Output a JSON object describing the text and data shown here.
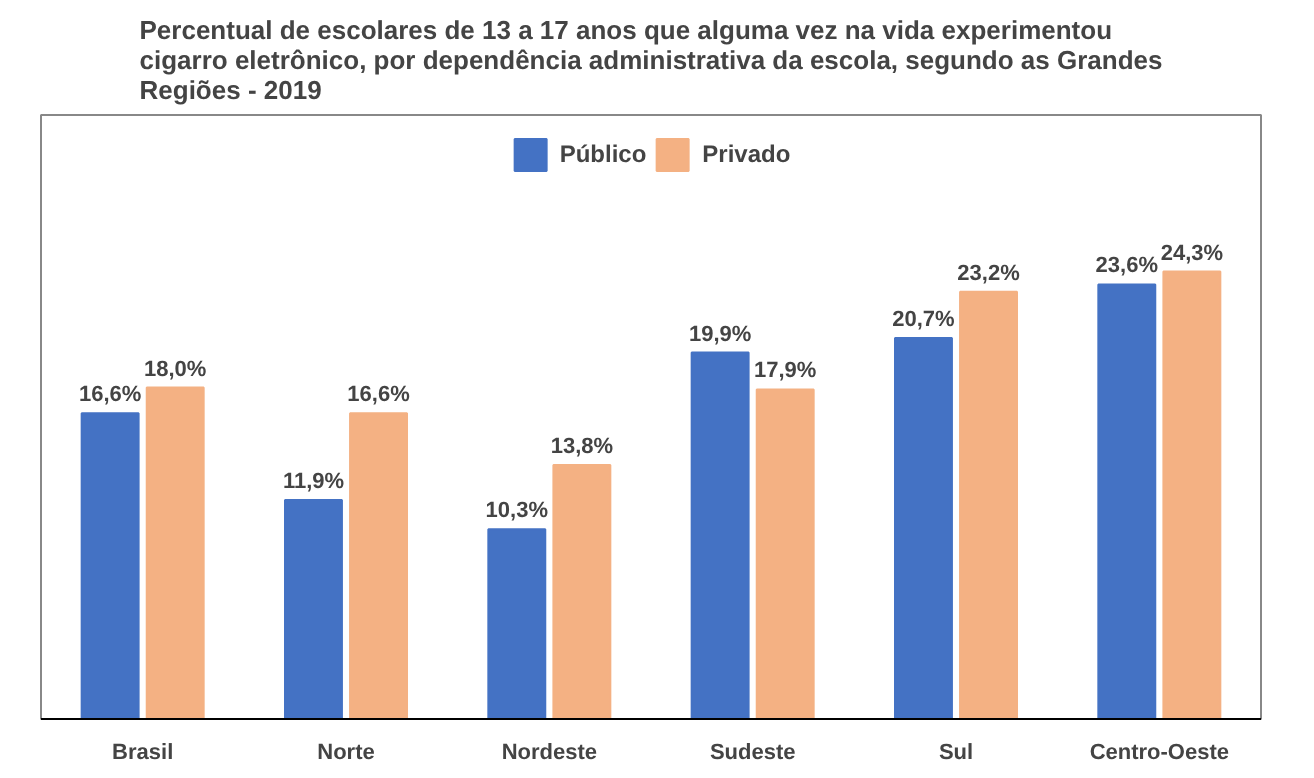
{
  "chart_data": {
    "type": "bar",
    "title": "Percentual de escolares de 13 a 17 anos que alguma vez na vida experimentou cigarro eletrônico, por dependência administrativa da escola, segundo as Grandes Regiões - 2019",
    "categories": [
      "Brasil",
      "Norte",
      "Nordeste",
      "Sudeste",
      "Sul",
      "Centro-Oeste"
    ],
    "series": [
      {
        "name": "Público",
        "color": "#4472c4",
        "values": [
          16.6,
          11.9,
          10.3,
          19.9,
          20.7,
          23.6
        ],
        "value_labels": [
          "16,6%",
          "11,9%",
          "10,3%",
          "19,9%",
          "20,7%",
          "23,6%"
        ]
      },
      {
        "name": "Privado",
        "color": "#f4b183",
        "values": [
          18.0,
          16.6,
          13.8,
          17.9,
          23.2,
          24.3
        ],
        "value_labels": [
          "18,0%",
          "16,6%",
          "13,8%",
          "17,9%",
          "23,2%",
          "24,3%"
        ]
      }
    ],
    "legend": "top"
  }
}
